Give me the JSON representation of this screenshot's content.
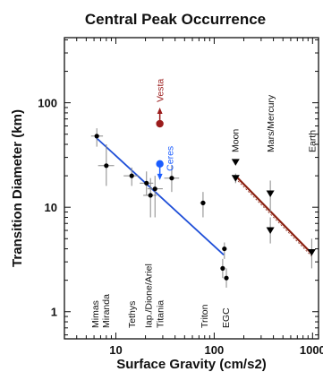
{
  "chart_data": {
    "type": "scatter",
    "title": "Central Peak Occurrence",
    "xlabel": "Surface Gravity (cm/s2)",
    "ylabel": "Transition Diameter (km)",
    "x_scale": "log",
    "y_scale": "log",
    "xlim": [
      3,
      1150
    ],
    "ylim": [
      0.55,
      420
    ],
    "x_ticks": [
      {
        "value": 10,
        "label": "10"
      },
      {
        "value": 100,
        "label": "100"
      },
      {
        "value": 1000,
        "label": "1000"
      }
    ],
    "y_ticks": [
      {
        "value": 1,
        "label": "1"
      },
      {
        "value": 10,
        "label": "10"
      },
      {
        "value": 100,
        "label": "100"
      }
    ],
    "grid": false,
    "colors": {
      "icy": "#000000",
      "fit_icy": "#1f4fd8",
      "ceres": "#1a5cff",
      "vesta": "#9b1c1c",
      "fit_rocky": "#8b2010",
      "error_bars": "#888888"
    },
    "icy_points": [
      {
        "x": 6.4,
        "y": 48,
        "xerr": [
          5.6,
          7.4
        ],
        "yerr": [
          38,
          57
        ]
      },
      {
        "x": 8.0,
        "y": 25,
        "xerr": [
          6.6,
          9.6
        ],
        "yerr": [
          16,
          40
        ]
      },
      {
        "x": 14.5,
        "y": 20,
        "xerr": [
          12,
          17
        ],
        "yerr": [
          16,
          24
        ]
      },
      {
        "x": 20.5,
        "y": 17,
        "xerr": [
          17.5,
          24
        ],
        "yerr": [
          13,
          22
        ]
      },
      {
        "x": 22.5,
        "y": 13,
        "xerr": [
          19,
          26
        ],
        "yerr": [
          8,
          19
        ]
      },
      {
        "x": 25,
        "y": 15,
        "xerr": [
          21,
          30
        ],
        "yerr": [
          8,
          20
        ]
      },
      {
        "x": 37,
        "y": 19,
        "xerr": [
          31,
          44
        ],
        "yerr": [
          14,
          25
        ]
      },
      {
        "x": 77,
        "y": 11,
        "xerr": [
          72,
          82
        ],
        "yerr": [
          8,
          14
        ]
      },
      {
        "x": 122,
        "y": 2.6,
        "xerr": [
          116,
          128
        ],
        "yerr": [
          2.1,
          3.2
        ]
      },
      {
        "x": 127,
        "y": 4.0,
        "xerr": [
          121,
          133
        ],
        "yerr": [
          3.2,
          4.6
        ]
      },
      {
        "x": 133,
        "y": 2.1,
        "xerr": [
          127,
          139
        ],
        "yerr": [
          1.7,
          2.6
        ]
      }
    ],
    "icy_fit": [
      [
        6.2,
        47
      ],
      [
        125,
        3.5
      ]
    ],
    "ceres": {
      "x": 28,
      "y": 26,
      "label": "Ceres"
    },
    "vesta": {
      "x": 28,
      "y": 63,
      "label": "Vesta"
    },
    "rocky_points": [
      {
        "x": 165,
        "y": 27,
        "marker": "triangle-down"
      },
      {
        "x": 165,
        "y": 19,
        "marker": "triangle-down",
        "yerr": [
          17,
          21
        ]
      },
      {
        "x": 372,
        "y": 13.5,
        "marker": "triangle-down",
        "yerr": [
          9,
          18
        ]
      },
      {
        "x": 372,
        "y": 6,
        "marker": "triangle-down",
        "yerr": [
          4.5,
          8
        ]
      },
      {
        "x": 980,
        "y": 3.7,
        "marker": "triangle-down",
        "yerr": [
          2.6,
          5
        ]
      }
    ],
    "rocky_fit": [
      [
        165,
        20
      ],
      [
        980,
        3.6
      ]
    ],
    "annotations": [
      {
        "text": "Mimas",
        "x": 6.1
      },
      {
        "text": "Miranda",
        "x": 7.9
      },
      {
        "text": "Tethys",
        "x": 14.5
      },
      {
        "text": "Iap./Dione/Ariel",
        "x": 21.2
      },
      {
        "text": "Titania",
        "x": 27.8
      },
      {
        "text": "Triton",
        "x": 79
      },
      {
        "text": "EGC",
        "x": 130
      },
      {
        "text": "Moon",
        "x": 162
      },
      {
        "text": "Mars/Mercury",
        "x": 372
      },
      {
        "text": "Earth",
        "x": 980
      }
    ]
  }
}
